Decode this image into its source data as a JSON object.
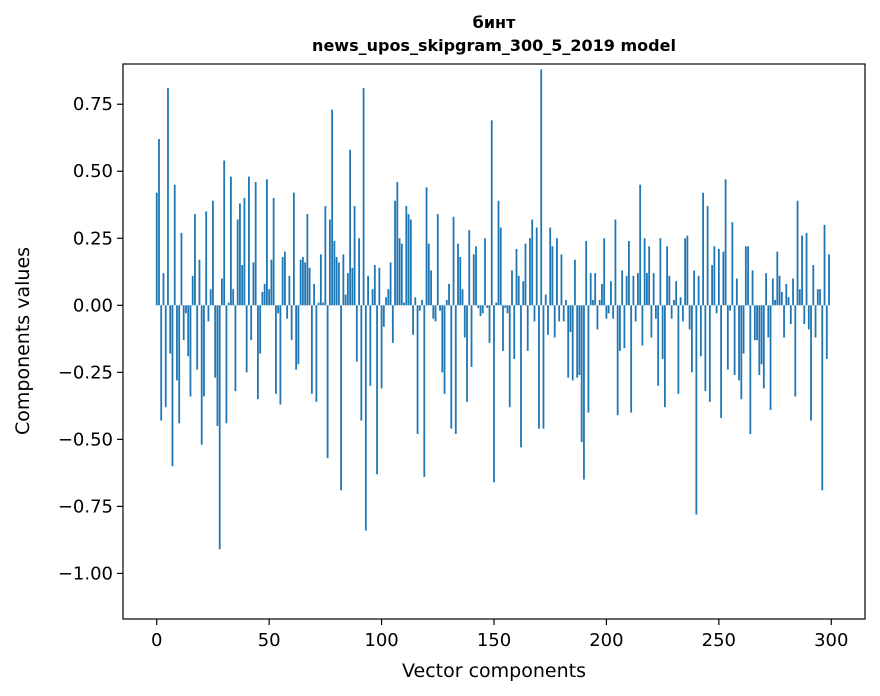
{
  "chart_data": {
    "type": "bar",
    "title": "бинт",
    "subtitle": "news_upos_skipgram_300_5_2019 model",
    "xlabel": "Vector components",
    "ylabel": "Components values",
    "xlim": [
      -15,
      315
    ],
    "ylim": [
      -1.17,
      0.9
    ],
    "xticks": [
      0,
      50,
      100,
      150,
      200,
      250,
      300
    ],
    "yticks": [
      0.75,
      0.5,
      0.25,
      0.0,
      -0.25,
      -0.5,
      -0.75,
      -1.0
    ],
    "ytick_labels": [
      "0.75",
      "0.50",
      "0.25",
      "0.00",
      "−0.25",
      "−0.50",
      "−0.75",
      "−1.00"
    ],
    "bar_color": "#1f77b4",
    "values": [
      0.42,
      0.62,
      -0.43,
      0.12,
      -0.38,
      0.81,
      -0.18,
      -0.6,
      0.45,
      -0.28,
      -0.44,
      0.27,
      -0.13,
      -0.03,
      -0.19,
      -0.34,
      0.11,
      0.34,
      -0.24,
      0.17,
      -0.52,
      -0.34,
      0.35,
      -0.06,
      0.06,
      0.39,
      -0.27,
      -0.45,
      -0.91,
      0.1,
      0.54,
      -0.44,
      0.01,
      0.48,
      0.06,
      -0.32,
      0.32,
      0.38,
      0.15,
      0.4,
      -0.25,
      0.48,
      -0.13,
      0.16,
      0.46,
      -0.35,
      -0.18,
      0.05,
      0.08,
      0.47,
      0.06,
      0.17,
      0.4,
      -0.33,
      -0.03,
      -0.37,
      0.18,
      0.2,
      -0.05,
      0.11,
      -0.13,
      0.42,
      -0.24,
      -0.22,
      0.17,
      0.18,
      0.16,
      0.34,
      0.14,
      -0.33,
      0.08,
      -0.36,
      0.01,
      0.19,
      0.01,
      0.37,
      -0.57,
      0.32,
      0.73,
      0.24,
      0.18,
      0.16,
      -0.69,
      0.19,
      0.04,
      0.12,
      0.58,
      0.14,
      0.37,
      -0.21,
      0.25,
      -0.43,
      0.81,
      -0.84,
      0.11,
      -0.3,
      0.06,
      0.15,
      -0.63,
      0.14,
      -0.31,
      -0.08,
      0.03,
      0.06,
      0.16,
      -0.14,
      0.39,
      0.46,
      0.25,
      0.23,
      0.01,
      0.37,
      0.34,
      0.32,
      -0.11,
      0.03,
      -0.48,
      -0.02,
      0.02,
      -0.64,
      0.44,
      0.23,
      0.13,
      -0.05,
      -0.06,
      0.34,
      -0.02,
      -0.25,
      -0.33,
      0.02,
      0.08,
      -0.46,
      0.33,
      -0.48,
      0.23,
      0.18,
      0.06,
      -0.12,
      -0.36,
      0.28,
      -0.23,
      0.19,
      0.22,
      -0.01,
      -0.04,
      -0.03,
      0.25,
      -0.01,
      -0.14,
      0.69,
      -0.66,
      0.01,
      0.39,
      0.29,
      -0.17,
      -0.01,
      -0.03,
      -0.38,
      0.13,
      -0.2,
      0.21,
      0.11,
      -0.53,
      0.09,
      0.23,
      -0.17,
      0.25,
      0.32,
      -0.06,
      0.29,
      -0.46,
      0.88,
      -0.46,
      0.04,
      -0.11,
      0.29,
      0.22,
      -0.12,
      0.25,
      -0.06,
      0.19,
      -0.06,
      0.02,
      -0.27,
      -0.1,
      -0.28,
      0.17,
      -0.27,
      -0.26,
      -0.51,
      -0.65,
      0.24,
      -0.4,
      0.12,
      0.02,
      0.12,
      -0.09,
      0.02,
      0.08,
      0.25,
      -0.05,
      -0.03,
      0.09,
      -0.05,
      0.32,
      -0.41,
      -0.17,
      0.13,
      -0.16,
      0.11,
      0.24,
      -0.4,
      0.11,
      -0.06,
      0.12,
      0.45,
      -0.15,
      0.25,
      0.12,
      0.22,
      -0.12,
      0.12,
      -0.05,
      -0.3,
      0.25,
      -0.2,
      -0.38,
      0.22,
      0.11,
      -0.05,
      0.02,
      0.09,
      -0.33,
      0.03,
      -0.06,
      0.25,
      0.26,
      -0.09,
      -0.25,
      0.13,
      -0.78,
      0.11,
      -0.19,
      0.42,
      -0.32,
      0.37,
      -0.36,
      0.15,
      0.22,
      -0.03,
      0.21,
      -0.42,
      0.2,
      0.47,
      -0.24,
      -0.02,
      0.31,
      -0.26,
      0.1,
      -0.28,
      -0.35,
      -0.18,
      0.22,
      0.22,
      -0.48,
      0.13,
      -0.13,
      -0.13,
      -0.26,
      -0.22,
      -0.31,
      0.12,
      -0.12,
      -0.39,
      0.1,
      0.02,
      0.2,
      0.11,
      0.05,
      -0.12,
      0.08,
      0.03,
      -0.07,
      0.1,
      -0.34,
      0.39,
      0.06,
      0.26,
      -0.07,
      0.27,
      -0.09,
      -0.43,
      0.15,
      -0.12,
      0.06,
      0.06,
      -0.69,
      0.3,
      -0.2,
      0.19
    ]
  }
}
